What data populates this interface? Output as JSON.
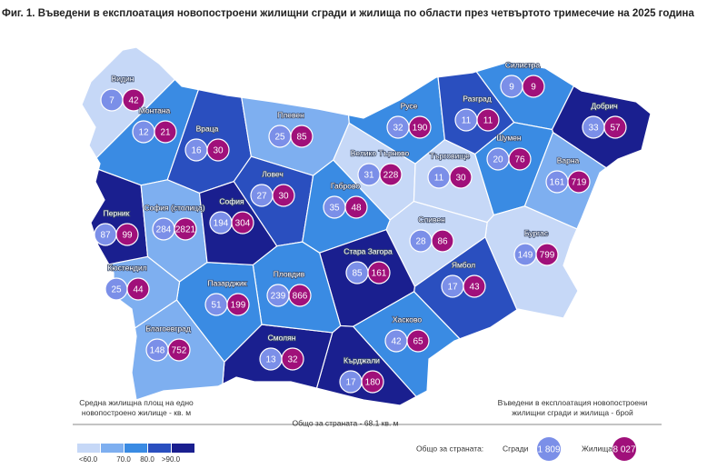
{
  "title": "Фиг. 1. Въведени в експлоатация новопостроени жилищни сгради и жилища по области през четвъртото тримесечие на 2025 година",
  "provinces": [
    {
      "name": "Видин",
      "buildings": 7,
      "dwellings": 42,
      "color": "#c6d8f7"
    },
    {
      "name": "Монтана",
      "buildings": 12,
      "dwellings": 21,
      "color": "#3a8be3"
    },
    {
      "name": "Враца",
      "buildings": 16,
      "dwellings": 30,
      "color": "#2a4fbf"
    },
    {
      "name": "Плевен",
      "buildings": 25,
      "dwellings": 85,
      "color": "#7eaff0"
    },
    {
      "name": "Ловеч",
      "buildings": 27,
      "dwellings": 30,
      "color": "#2a4fbf"
    },
    {
      "name": "Габрово",
      "buildings": 35,
      "dwellings": 48,
      "color": "#3a8be3"
    },
    {
      "name": "Велико Търново",
      "buildings": 31,
      "dwellings": 228,
      "color": "#c6d8f7"
    },
    {
      "name": "Русе",
      "buildings": 32,
      "dwellings": 190,
      "color": "#3a8be3"
    },
    {
      "name": "Разград",
      "buildings": 11,
      "dwellings": 11,
      "color": "#2a4fbf"
    },
    {
      "name": "Силистра",
      "buildings": 9,
      "dwellings": 9,
      "color": "#3a8be3"
    },
    {
      "name": "Добрич",
      "buildings": 33,
      "dwellings": 57,
      "color": "#1a1f8f"
    },
    {
      "name": "Търговище",
      "buildings": 11,
      "dwellings": 30,
      "color": "#c6d8f7"
    },
    {
      "name": "Шумен",
      "buildings": 20,
      "dwellings": 76,
      "color": "#3a8be3"
    },
    {
      "name": "Варна",
      "buildings": 161,
      "dwellings": 719,
      "color": "#7eaff0"
    },
    {
      "name": "Бургас",
      "buildings": 149,
      "dwellings": 799,
      "color": "#c6d8f7"
    },
    {
      "name": "Сливен",
      "buildings": 28,
      "dwellings": 86,
      "color": "#c6d8f7"
    },
    {
      "name": "Ямбол",
      "buildings": 17,
      "dwellings": 43,
      "color": "#2a4fbf"
    },
    {
      "name": "Стара Загора",
      "buildings": 85,
      "dwellings": 161,
      "color": "#1a1f8f"
    },
    {
      "name": "Хасково",
      "buildings": 42,
      "dwellings": 65,
      "color": "#3a8be3"
    },
    {
      "name": "Кърджали",
      "buildings": 17,
      "dwellings": 180,
      "color": "#1a1f8f"
    },
    {
      "name": "Смолян",
      "buildings": 13,
      "dwellings": 32,
      "color": "#1a1f8f"
    },
    {
      "name": "Пловдив",
      "buildings": 239,
      "dwellings": 866,
      "color": "#3a8be3"
    },
    {
      "name": "Пазарджик",
      "buildings": 51,
      "dwellings": 199,
      "color": "#3a8be3"
    },
    {
      "name": "Благоевград",
      "buildings": 148,
      "dwellings": 752,
      "color": "#7eaff0"
    },
    {
      "name": "Кюстендил",
      "buildings": 25,
      "dwellings": 44,
      "color": "#7eaff0"
    },
    {
      "name": "Перник",
      "buildings": 87,
      "dwellings": 99,
      "color": "#1a1f8f"
    },
    {
      "name": "София (столица)",
      "buildings": 284,
      "dwellings": 2821,
      "color": "#7eaff0"
    },
    {
      "name": "София",
      "buildings": 194,
      "dwellings": 304,
      "color": "#1a1f8f"
    }
  ],
  "legend": {
    "caption": "Средна жилищна площ на едно новопостроено жилище - кв. м",
    "colors": [
      "#c6d8f7",
      "#7eaff0",
      "#3a8be3",
      "#2a4fbf",
      "#1a1f8f"
    ],
    "labels": [
      "<60.0",
      "70.0",
      "80.0",
      ">90.0"
    ],
    "average": "Общо за страната - 68.1 кв. м"
  },
  "totals": {
    "caption": "Въведени в експлоатация новопостроени жилищни сгради и жилища - брой",
    "label": "Общо за страната:",
    "buildings_label": "Сгради",
    "buildings": "1 809",
    "dwellings_label": "Жилища",
    "dwellings": "8 027",
    "buildings_color": "#7b8fe8",
    "dwellings_color": "#a0107a"
  }
}
